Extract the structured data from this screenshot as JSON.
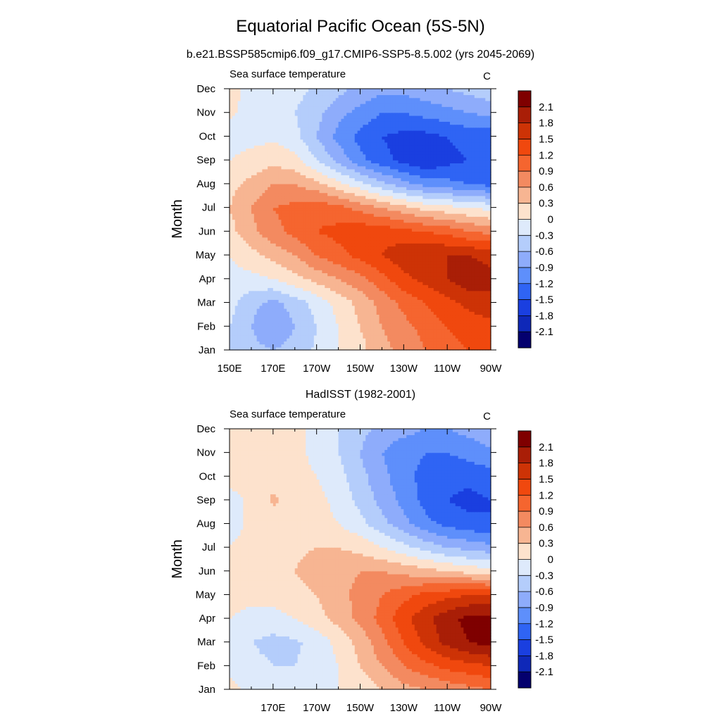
{
  "figure": {
    "title": "Equatorial Pacific Ocean (5S-5N)"
  },
  "chart_data": [
    {
      "type": "heatmap",
      "title": "b.e21.BSSP585cmip6.f09_g17.CMIP6-SSP5-8.5.002 (yrs 2045-2069)",
      "left_string": "Sea surface temperature",
      "right_string": "C",
      "xlabel": "",
      "ylabel": "Month",
      "x_ticks": [
        "150E",
        "170E",
        "170W",
        "150W",
        "130W",
        "110W",
        "90W"
      ],
      "y_ticks": [
        "Jan",
        "Feb",
        "Mar",
        "Apr",
        "May",
        "Jun",
        "Jul",
        "Aug",
        "Sep",
        "Oct",
        "Nov",
        "Dec"
      ],
      "x_lon": [
        150,
        160,
        170,
        180,
        190,
        200,
        210,
        220,
        230,
        240,
        250,
        260,
        270
      ],
      "z": [
        [
          -0.3,
          -0.5,
          -0.6,
          -0.45,
          -0.25,
          0.0,
          0.2,
          0.5,
          0.7,
          0.9,
          1.1,
          1.2,
          1.3
        ],
        [
          -0.3,
          -0.6,
          -0.9,
          -0.6,
          -0.3,
          0.0,
          0.3,
          0.6,
          0.8,
          1.0,
          1.2,
          1.3,
          1.4
        ],
        [
          -0.2,
          -0.5,
          -0.7,
          -0.45,
          -0.2,
          0.1,
          0.4,
          0.7,
          1.0,
          1.2,
          1.4,
          1.6,
          1.7
        ],
        [
          -0.1,
          -0.1,
          0.0,
          0.2,
          0.4,
          0.6,
          0.8,
          1.1,
          1.4,
          1.6,
          1.8,
          2.0,
          1.9
        ],
        [
          0.0,
          0.2,
          0.4,
          0.6,
          0.9,
          1.1,
          1.3,
          1.5,
          1.7,
          1.8,
          1.8,
          1.8,
          1.7
        ],
        [
          0.2,
          0.5,
          0.8,
          1.0,
          1.2,
          1.3,
          1.4,
          1.4,
          1.3,
          1.2,
          1.1,
          0.9,
          0.8
        ],
        [
          0.3,
          0.6,
          0.9,
          1.0,
          1.1,
          1.0,
          0.8,
          0.6,
          0.4,
          0.2,
          0.1,
          0.0,
          -0.1
        ],
        [
          0.2,
          0.4,
          0.6,
          0.6,
          0.4,
          0.1,
          -0.2,
          -0.5,
          -0.8,
          -1.0,
          -1.1,
          -1.2,
          -1.3
        ],
        [
          0.0,
          0.1,
          0.2,
          0.1,
          -0.3,
          -0.7,
          -1.1,
          -1.4,
          -1.6,
          -1.8,
          -1.6,
          -1.5,
          -1.5
        ],
        [
          -0.1,
          -0.1,
          -0.05,
          -0.2,
          -0.6,
          -1.0,
          -1.3,
          -1.5,
          -1.6,
          -1.6,
          -1.5,
          -1.4,
          -1.4
        ],
        [
          0.05,
          -0.1,
          -0.2,
          -0.3,
          -0.5,
          -0.8,
          -1.0,
          -1.2,
          -1.2,
          -1.1,
          -1.0,
          -0.9,
          -0.8
        ],
        [
          0.1,
          -0.1,
          -0.15,
          -0.2,
          -0.35,
          -0.5,
          -0.7,
          -0.8,
          -0.8,
          -0.7,
          -0.6,
          -0.5,
          -0.4
        ]
      ],
      "levels": [
        "2.1",
        "1.8",
        "1.5",
        "1.2",
        "0.9",
        "0.6",
        "0.3",
        "0",
        "-0.3",
        "-0.6",
        "-0.9",
        "-1.2",
        "-1.5",
        "-1.8",
        "-2.1"
      ],
      "colors": [
        "#7f0000",
        "#a91e07",
        "#cd3306",
        "#f0480e",
        "#f5652f",
        "#f38a60",
        "#f7b592",
        "#fde2cd",
        "#deeafb",
        "#b4cdfb",
        "#8eacfb",
        "#5e8ffb",
        "#2f64f4",
        "#1a3fe0",
        "#0f28b8",
        "#04006e"
      ]
    },
    {
      "type": "heatmap",
      "title": "HadISST (1982-2001)",
      "left_string": "Sea surface temperature",
      "right_string": "C",
      "xlabel": "",
      "ylabel": "Month",
      "x_ticks": [
        "170E",
        "170W",
        "150W",
        "130W",
        "110W",
        "90W"
      ],
      "y_ticks": [
        "Jan",
        "Feb",
        "Mar",
        "Apr",
        "May",
        "Jun",
        "Jul",
        "Aug",
        "Sep",
        "Oct",
        "Nov",
        "Dec"
      ],
      "x_lon": [
        150,
        160,
        170,
        180,
        190,
        200,
        210,
        220,
        230,
        240,
        250,
        260,
        270
      ],
      "z": [
        [
          0.1,
          -0.1,
          -0.2,
          -0.2,
          -0.1,
          0.0,
          0.1,
          0.3,
          0.5,
          0.6,
          0.7,
          0.8,
          0.9
        ],
        [
          -0.1,
          -0.2,
          -0.3,
          -0.3,
          -0.2,
          0.0,
          0.3,
          0.6,
          0.9,
          1.1,
          1.3,
          1.4,
          1.5
        ],
        [
          -0.1,
          -0.3,
          -0.4,
          -0.35,
          -0.2,
          0.1,
          0.4,
          0.8,
          1.2,
          1.6,
          1.9,
          2.1,
          2.2
        ],
        [
          0.0,
          -0.1,
          -0.1,
          0.0,
          0.2,
          0.4,
          0.7,
          1.0,
          1.4,
          1.7,
          2.0,
          2.2,
          2.2
        ],
        [
          0.1,
          0.1,
          0.1,
          0.2,
          0.3,
          0.5,
          0.7,
          0.9,
          1.1,
          1.3,
          1.4,
          1.5,
          1.5
        ],
        [
          0.1,
          0.15,
          0.2,
          0.3,
          0.4,
          0.5,
          0.6,
          0.6,
          0.5,
          0.4,
          0.3,
          0.2,
          0.1
        ],
        [
          0.0,
          0.1,
          0.15,
          0.25,
          0.3,
          0.3,
          0.2,
          0.0,
          -0.2,
          -0.4,
          -0.6,
          -0.7,
          -0.8
        ],
        [
          -0.1,
          0.05,
          0.15,
          0.2,
          0.15,
          0.0,
          -0.2,
          -0.5,
          -0.8,
          -1.1,
          -1.3,
          -1.4,
          -1.5
        ],
        [
          -0.1,
          0.05,
          0.35,
          0.2,
          0.1,
          -0.1,
          -0.4,
          -0.7,
          -1.0,
          -1.3,
          -1.5,
          -1.6,
          -1.5
        ],
        [
          0.1,
          0.15,
          0.2,
          0.15,
          0.0,
          -0.2,
          -0.5,
          -0.8,
          -1.1,
          -1.3,
          -1.4,
          -1.4,
          -1.3
        ],
        [
          0.1,
          0.15,
          0.2,
          0.1,
          -0.1,
          -0.3,
          -0.6,
          -0.9,
          -1.1,
          -1.2,
          -1.2,
          -1.1,
          -1.0
        ],
        [
          0.1,
          0.15,
          0.2,
          0.1,
          -0.1,
          -0.3,
          -0.5,
          -0.7,
          -0.8,
          -0.9,
          -0.9,
          -0.8,
          -0.6
        ]
      ],
      "levels": [
        "2.1",
        "1.8",
        "1.5",
        "1.2",
        "0.9",
        "0.6",
        "0.3",
        "0",
        "-0.3",
        "-0.6",
        "-0.9",
        "-1.2",
        "-1.5",
        "-1.8",
        "-2.1"
      ],
      "colors": [
        "#7f0000",
        "#a91e07",
        "#cd3306",
        "#f0480e",
        "#f5652f",
        "#f38a60",
        "#f7b592",
        "#fde2cd",
        "#deeafb",
        "#b4cdfb",
        "#8eacfb",
        "#5e8ffb",
        "#2f64f4",
        "#1a3fe0",
        "#0f28b8",
        "#04006e"
      ]
    }
  ]
}
